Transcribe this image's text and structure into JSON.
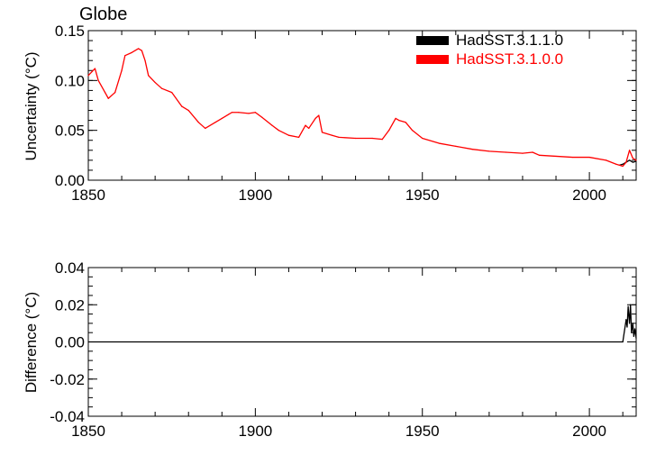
{
  "chart_data": [
    {
      "type": "line",
      "title": "Globe",
      "xlabel": "",
      "ylabel": "Uncertainty (°C)",
      "xlim": [
        1850,
        2014
      ],
      "ylim": [
        0.0,
        0.15
      ],
      "xticks": [
        "1850",
        "1900",
        "1950",
        "2000"
      ],
      "yticks": [
        "0.00",
        "0.05",
        "0.10",
        "0.15"
      ],
      "ytick_values": [
        0.0,
        0.05,
        0.1,
        0.15
      ],
      "legend_position": "top-right",
      "series": [
        {
          "name": "HadSST.3.1.1.0",
          "color": "#000000",
          "x": [
            2009,
            2010,
            2011,
            2012,
            2013,
            2014
          ],
          "y": [
            0.015,
            0.016,
            0.018,
            0.02,
            0.018,
            0.019
          ]
        },
        {
          "name": "HadSST.3.1.0.0",
          "color": "#ff0000",
          "x": [
            1850,
            1852,
            1853,
            1855,
            1856,
            1858,
            1860,
            1861,
            1863,
            1865,
            1866,
            1867,
            1868,
            1870,
            1872,
            1875,
            1878,
            1880,
            1883,
            1885,
            1888,
            1890,
            1893,
            1895,
            1898,
            1900,
            1902,
            1905,
            1907,
            1910,
            1913,
            1915,
            1916,
            1918,
            1919,
            1920,
            1923,
            1925,
            1930,
            1935,
            1938,
            1940,
            1942,
            1943,
            1945,
            1947,
            1950,
            1955,
            1960,
            1965,
            1970,
            1975,
            1980,
            1983,
            1985,
            1990,
            1995,
            2000,
            2005,
            2008,
            2010,
            2011,
            2012,
            2013,
            2014
          ],
          "y": [
            0.105,
            0.112,
            0.1,
            0.088,
            0.082,
            0.088,
            0.11,
            0.125,
            0.128,
            0.132,
            0.13,
            0.12,
            0.105,
            0.098,
            0.092,
            0.088,
            0.074,
            0.07,
            0.058,
            0.052,
            0.058,
            0.062,
            0.068,
            0.068,
            0.067,
            0.068,
            0.063,
            0.055,
            0.05,
            0.045,
            0.043,
            0.055,
            0.052,
            0.062,
            0.065,
            0.048,
            0.045,
            0.043,
            0.042,
            0.042,
            0.041,
            0.05,
            0.062,
            0.06,
            0.058,
            0.05,
            0.042,
            0.037,
            0.034,
            0.031,
            0.029,
            0.028,
            0.027,
            0.028,
            0.025,
            0.024,
            0.023,
            0.023,
            0.02,
            0.016,
            0.014,
            0.018,
            0.03,
            0.022,
            0.02
          ]
        }
      ]
    },
    {
      "type": "line",
      "title": "",
      "xlabel": "",
      "ylabel": "Difference (°C)",
      "xlim": [
        1850,
        2014
      ],
      "ylim": [
        -0.04,
        0.04
      ],
      "xticks": [
        "1850",
        "1900",
        "1950",
        "2000"
      ],
      "yticks": [
        "0.04",
        "0.02",
        "0.00",
        "-0.02",
        "-0.04"
      ],
      "ytick_values": [
        0.04,
        0.02,
        0.0,
        -0.02,
        -0.04
      ],
      "series": [
        {
          "color": "#000000",
          "x": [
            1850,
            2010,
            2011,
            2011.3,
            2011.6,
            2012,
            2012.3,
            2012.6,
            2013,
            2013.3,
            2013.6,
            2014
          ],
          "y": [
            0.0,
            0.0,
            0.012,
            0.008,
            0.019,
            0.01,
            0.02,
            0.005,
            0.01,
            0.003,
            0.007,
            0.002
          ]
        }
      ]
    }
  ]
}
